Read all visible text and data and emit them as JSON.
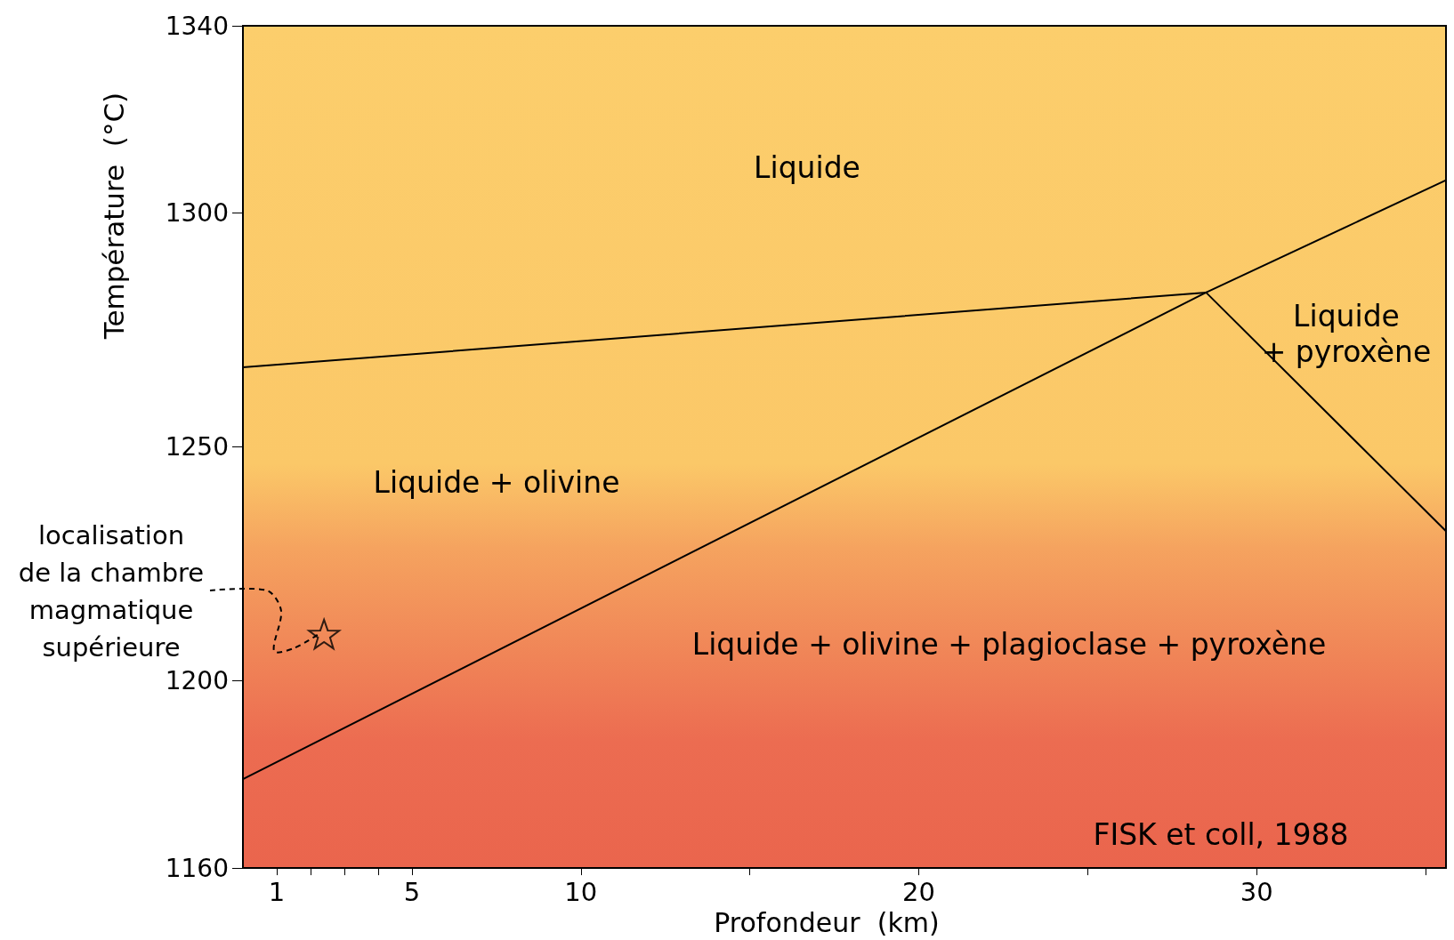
{
  "chart_data": {
    "type": "line",
    "xlabel": "Profondeur  (km)",
    "ylabel": "Température  (°C)",
    "xlim": [
      0,
      35.6
    ],
    "ylim": [
      1160,
      1340
    ],
    "xticks": [
      1,
      {
        "value": 2,
        "label": null
      },
      {
        "value": 3,
        "label": null
      },
      {
        "value": 4,
        "label": null
      },
      5,
      10,
      {
        "value": 15,
        "label": null
      },
      20,
      {
        "value": 25,
        "label": null
      },
      30,
      {
        "value": 35,
        "label": null
      }
    ],
    "yticks": [
      1160,
      1200,
      1250,
      1300,
      1340
    ],
    "grid": false,
    "series": [
      {
        "color": "#000000",
        "x": [
          0,
          28.5
        ],
        "values": [
          1267,
          1283
        ],
        "marker": "none"
      },
      {
        "color": "#000000",
        "x": [
          0,
          28.5,
          35.6
        ],
        "values": [
          1179,
          1283,
          1307
        ],
        "marker": "none"
      },
      {
        "color": "#000000",
        "x": [
          28.5,
          35.6
        ],
        "values": [
          1283,
          1232
        ],
        "marker": "none"
      },
      {
        "type": "scatter",
        "color": "#000000",
        "x": [
          2.4
        ],
        "values": [
          1210
        ],
        "marker": "star"
      }
    ],
    "annotations": [
      "Liquide",
      "Liquide + olivine",
      "Liquide\n+ pyroxène",
      "Liquide + olivine + plagioclase + pyroxène",
      {
        "text": "localisation\nde la chambre\nmagmatique\nsupérieure",
        "x": 2.4,
        "y": 1210
      },
      "FISK et coll, 1988"
    ]
  }
}
